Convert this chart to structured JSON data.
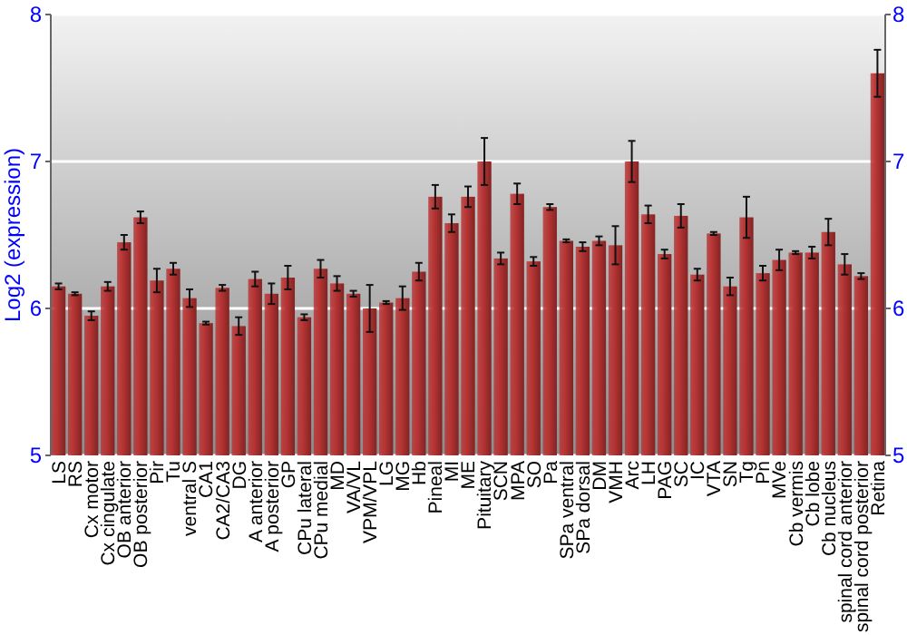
{
  "chart_data": {
    "type": "bar",
    "ylabel": "Log2 (expression)",
    "categories": [
      "LS",
      "RS",
      "Cx motor",
      "Cx cingulate",
      "OB anterior",
      "OB posterior",
      "Pir",
      "Tu",
      "ventral S",
      "CA1",
      "CA2/CA3",
      "DG",
      "A anterior",
      "A posterior",
      "GP",
      "CPu lateral",
      "CPu medial",
      "MD",
      "VA/VL",
      "VPM/VPL",
      "LG",
      "MG",
      "Hb",
      "Pineal",
      "MI",
      "ME",
      "Pituitary",
      "SCN",
      "MPA",
      "SO",
      "Pa",
      "SPa ventral",
      "SPa dorsal",
      "DM",
      "VMH",
      "Arc",
      "LH",
      "PAG",
      "SC",
      "IC",
      "VTA",
      "SN",
      "Tg",
      "Pn",
      "MVe",
      "Cb vermis",
      "Cb lobe",
      "Cb nucleus",
      "spinal cord anterior",
      "spinal cord posterior",
      "Retina"
    ],
    "values": [
      6.15,
      6.1,
      5.95,
      6.15,
      6.45,
      6.62,
      6.19,
      6.27,
      6.07,
      5.9,
      6.14,
      5.88,
      6.2,
      6.1,
      6.21,
      5.94,
      6.27,
      6.17,
      6.1,
      6.0,
      6.04,
      6.07,
      6.25,
      6.76,
      6.58,
      6.76,
      7.0,
      6.34,
      6.78,
      6.32,
      6.69,
      6.46,
      6.42,
      6.46,
      6.43,
      7.0,
      6.64,
      6.37,
      6.63,
      6.23,
      6.51,
      6.15,
      6.62,
      6.24,
      6.33,
      6.38,
      6.38,
      6.52,
      6.3,
      6.22,
      7.6
    ],
    "errors": [
      0.02,
      0.01,
      0.03,
      0.03,
      0.05,
      0.04,
      0.08,
      0.04,
      0.06,
      0.01,
      0.02,
      0.06,
      0.05,
      0.07,
      0.08,
      0.02,
      0.06,
      0.05,
      0.02,
      0.16,
      0.01,
      0.08,
      0.06,
      0.08,
      0.06,
      0.07,
      0.16,
      0.04,
      0.07,
      0.03,
      0.02,
      0.01,
      0.03,
      0.03,
      0.13,
      0.14,
      0.06,
      0.03,
      0.08,
      0.04,
      0.01,
      0.06,
      0.14,
      0.05,
      0.07,
      0.01,
      0.04,
      0.09,
      0.07,
      0.02,
      0.16
    ],
    "color": "#b83434",
    "ylim": [
      5,
      8
    ],
    "yticks": [
      5,
      6,
      7,
      8
    ],
    "y2lim": [
      5,
      8
    ],
    "y2ticks": [
      5,
      6,
      7,
      8
    ],
    "grid": "y"
  }
}
